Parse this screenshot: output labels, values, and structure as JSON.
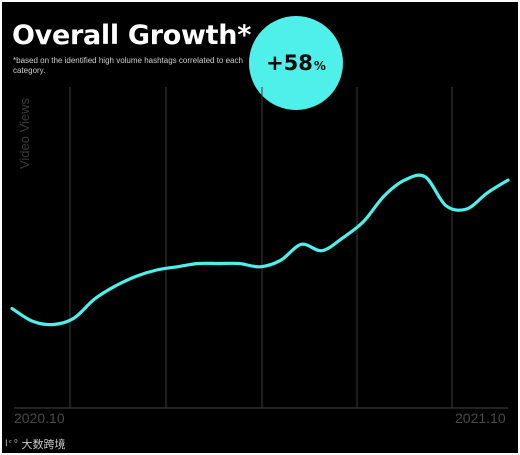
{
  "chart_data": {
    "type": "line",
    "title": "Overall Growth*",
    "subtitle": "*based on the identified high volume hashtags correlated to each category.",
    "ylabel": "Video Views",
    "xlabel": "",
    "x_tick_labels": [
      "2020.10",
      "2021.10"
    ],
    "grid": "vertical",
    "highlight": {
      "value": "+58",
      "unit": "%"
    },
    "line_color": "#4ff0ea",
    "background_color": "#000000",
    "series": [
      {
        "values": [
          0.31,
          0.27,
          0.26,
          0.28,
          0.34,
          0.38,
          0.41,
          0.43,
          0.44,
          0.45,
          0.45,
          0.45,
          0.44,
          0.46,
          0.51,
          0.49,
          0.53,
          0.58,
          0.66,
          0.71,
          0.72,
          0.63,
          0.62,
          0.67,
          0.71
        ]
      }
    ]
  },
  "watermark": {
    "mark": "Ⅰᶜᴼ",
    "text": "大数跨境"
  }
}
